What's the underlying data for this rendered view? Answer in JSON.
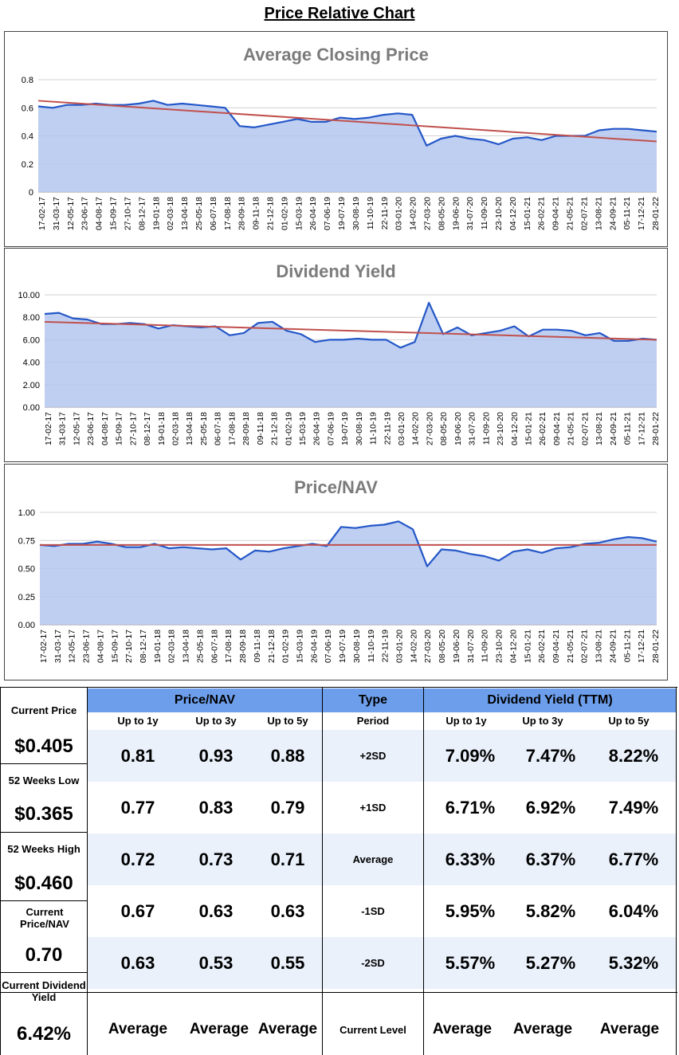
{
  "page_title": "Price Relative Chart",
  "x_dates": [
    "17-02-17",
    "31-03-17",
    "12-05-17",
    "23-06-17",
    "04-08-17",
    "15-09-17",
    "27-10-17",
    "08-12-17",
    "19-01-18",
    "02-03-18",
    "13-04-18",
    "25-05-18",
    "06-07-18",
    "17-08-18",
    "28-09-18",
    "09-11-18",
    "21-12-18",
    "01-02-19",
    "15-03-19",
    "26-04-19",
    "07-06-19",
    "19-07-19",
    "30-08-19",
    "11-10-19",
    "22-11-19",
    "03-01-20",
    "14-02-20",
    "27-03-20",
    "08-05-20",
    "19-06-20",
    "31-07-20",
    "11-09-20",
    "23-10-20",
    "04-12-20",
    "15-01-21",
    "26-02-21",
    "09-04-21",
    "21-05-21",
    "02-07-21",
    "13-08-21",
    "24-09-21",
    "05-11-21",
    "17-12-21",
    "28-01-22"
  ],
  "chart_data": [
    {
      "type": "area",
      "title": "Average Closing Price",
      "ylim": [
        0,
        0.8
      ],
      "yticks": [
        "0",
        "0.2",
        "0.4",
        "0.6",
        "0.8"
      ],
      "series": [
        {
          "name": "Average Closing Price",
          "values": [
            0.61,
            0.6,
            0.62,
            0.62,
            0.63,
            0.62,
            0.62,
            0.63,
            0.65,
            0.62,
            0.63,
            0.62,
            0.61,
            0.6,
            0.47,
            0.46,
            0.48,
            0.5,
            0.52,
            0.5,
            0.5,
            0.53,
            0.52,
            0.53,
            0.55,
            0.56,
            0.55,
            0.33,
            0.38,
            0.4,
            0.38,
            0.37,
            0.34,
            0.38,
            0.39,
            0.37,
            0.4,
            0.4,
            0.4,
            0.44,
            0.45,
            0.45,
            0.44,
            0.43
          ]
        },
        {
          "name": "Trend",
          "values": [
            0.65,
            0.36
          ],
          "kind": "trendline"
        }
      ]
    },
    {
      "type": "area",
      "title": "Dividend Yield",
      "ylim": [
        0,
        10
      ],
      "yticks": [
        "0.00",
        "2.00",
        "4.00",
        "6.00",
        "8.00",
        "10.00"
      ],
      "series": [
        {
          "name": "Dividend Yield",
          "values": [
            8.3,
            8.4,
            7.9,
            7.8,
            7.4,
            7.4,
            7.5,
            7.4,
            7.0,
            7.3,
            7.2,
            7.1,
            7.2,
            6.4,
            6.6,
            7.5,
            7.6,
            6.8,
            6.5,
            5.8,
            6.0,
            6.0,
            6.1,
            6.0,
            6.0,
            5.3,
            5.8,
            9.3,
            6.5,
            7.1,
            6.4,
            6.6,
            6.8,
            7.2,
            6.3,
            6.9,
            6.9,
            6.8,
            6.4,
            6.6,
            5.9,
            5.9,
            6.1,
            6.0
          ]
        },
        {
          "name": "Trend",
          "values": [
            7.6,
            6.0
          ],
          "kind": "trendline"
        }
      ]
    },
    {
      "type": "area",
      "title": "Price/NAV",
      "ylim": [
        0,
        1.0
      ],
      "yticks": [
        "0.00",
        "0.25",
        "0.50",
        "0.75",
        "1.00"
      ],
      "series": [
        {
          "name": "Price/NAV",
          "values": [
            0.71,
            0.7,
            0.72,
            0.72,
            0.74,
            0.72,
            0.69,
            0.69,
            0.72,
            0.68,
            0.69,
            0.68,
            0.67,
            0.68,
            0.58,
            0.66,
            0.65,
            0.68,
            0.7,
            0.72,
            0.7,
            0.87,
            0.86,
            0.88,
            0.89,
            0.92,
            0.85,
            0.52,
            0.67,
            0.66,
            0.63,
            0.61,
            0.57,
            0.65,
            0.67,
            0.64,
            0.68,
            0.69,
            0.72,
            0.73,
            0.76,
            0.78,
            0.77,
            0.74
          ]
        },
        {
          "name": "Average",
          "values": [
            0.71,
            0.71
          ],
          "kind": "trendline"
        }
      ]
    }
  ],
  "stats": {
    "left": [
      {
        "label": "Current Price",
        "value": "$0.405"
      },
      {
        "label": "52 Weeks Low",
        "value": "$0.365"
      },
      {
        "label": "52 Weeks High",
        "value": "$0.460"
      },
      {
        "label": "Current Price/NAV",
        "value": "0.70"
      },
      {
        "label": "Current Dividend Yield",
        "value": "6.42%"
      }
    ],
    "pnav_header": "Price/NAV",
    "type_header": "Type",
    "dy_header": "Dividend Yield (TTM)",
    "period_label": "Period",
    "sub_headers": [
      "Up to 1y",
      "Up to 3y",
      "Up to 5y"
    ],
    "rows": [
      {
        "type": "+2SD",
        "pnav": [
          "0.81",
          "0.93",
          "0.88"
        ],
        "dy": [
          "7.09%",
          "7.47%",
          "8.22%"
        ]
      },
      {
        "type": "+1SD",
        "pnav": [
          "0.77",
          "0.83",
          "0.79"
        ],
        "dy": [
          "6.71%",
          "6.92%",
          "7.49%"
        ]
      },
      {
        "type": "Average",
        "pnav": [
          "0.72",
          "0.73",
          "0.71"
        ],
        "dy": [
          "6.33%",
          "6.37%",
          "6.77%"
        ]
      },
      {
        "type": "-1SD",
        "pnav": [
          "0.67",
          "0.63",
          "0.63"
        ],
        "dy": [
          "5.95%",
          "5.82%",
          "6.04%"
        ]
      },
      {
        "type": "-2SD",
        "pnav": [
          "0.63",
          "0.53",
          "0.55"
        ],
        "dy": [
          "5.57%",
          "5.27%",
          "5.32%"
        ]
      }
    ],
    "current_level": {
      "type": "Current Level",
      "pnav": [
        "Average",
        "Average",
        "Average"
      ],
      "dy": [
        "Average",
        "Average",
        "Average"
      ]
    }
  },
  "colors": {
    "area_fill": "#b4c7ee",
    "line": "#2457c8",
    "trend": "#c0504d",
    "header": "#6d9eeb",
    "band": "#eaf1fb"
  }
}
